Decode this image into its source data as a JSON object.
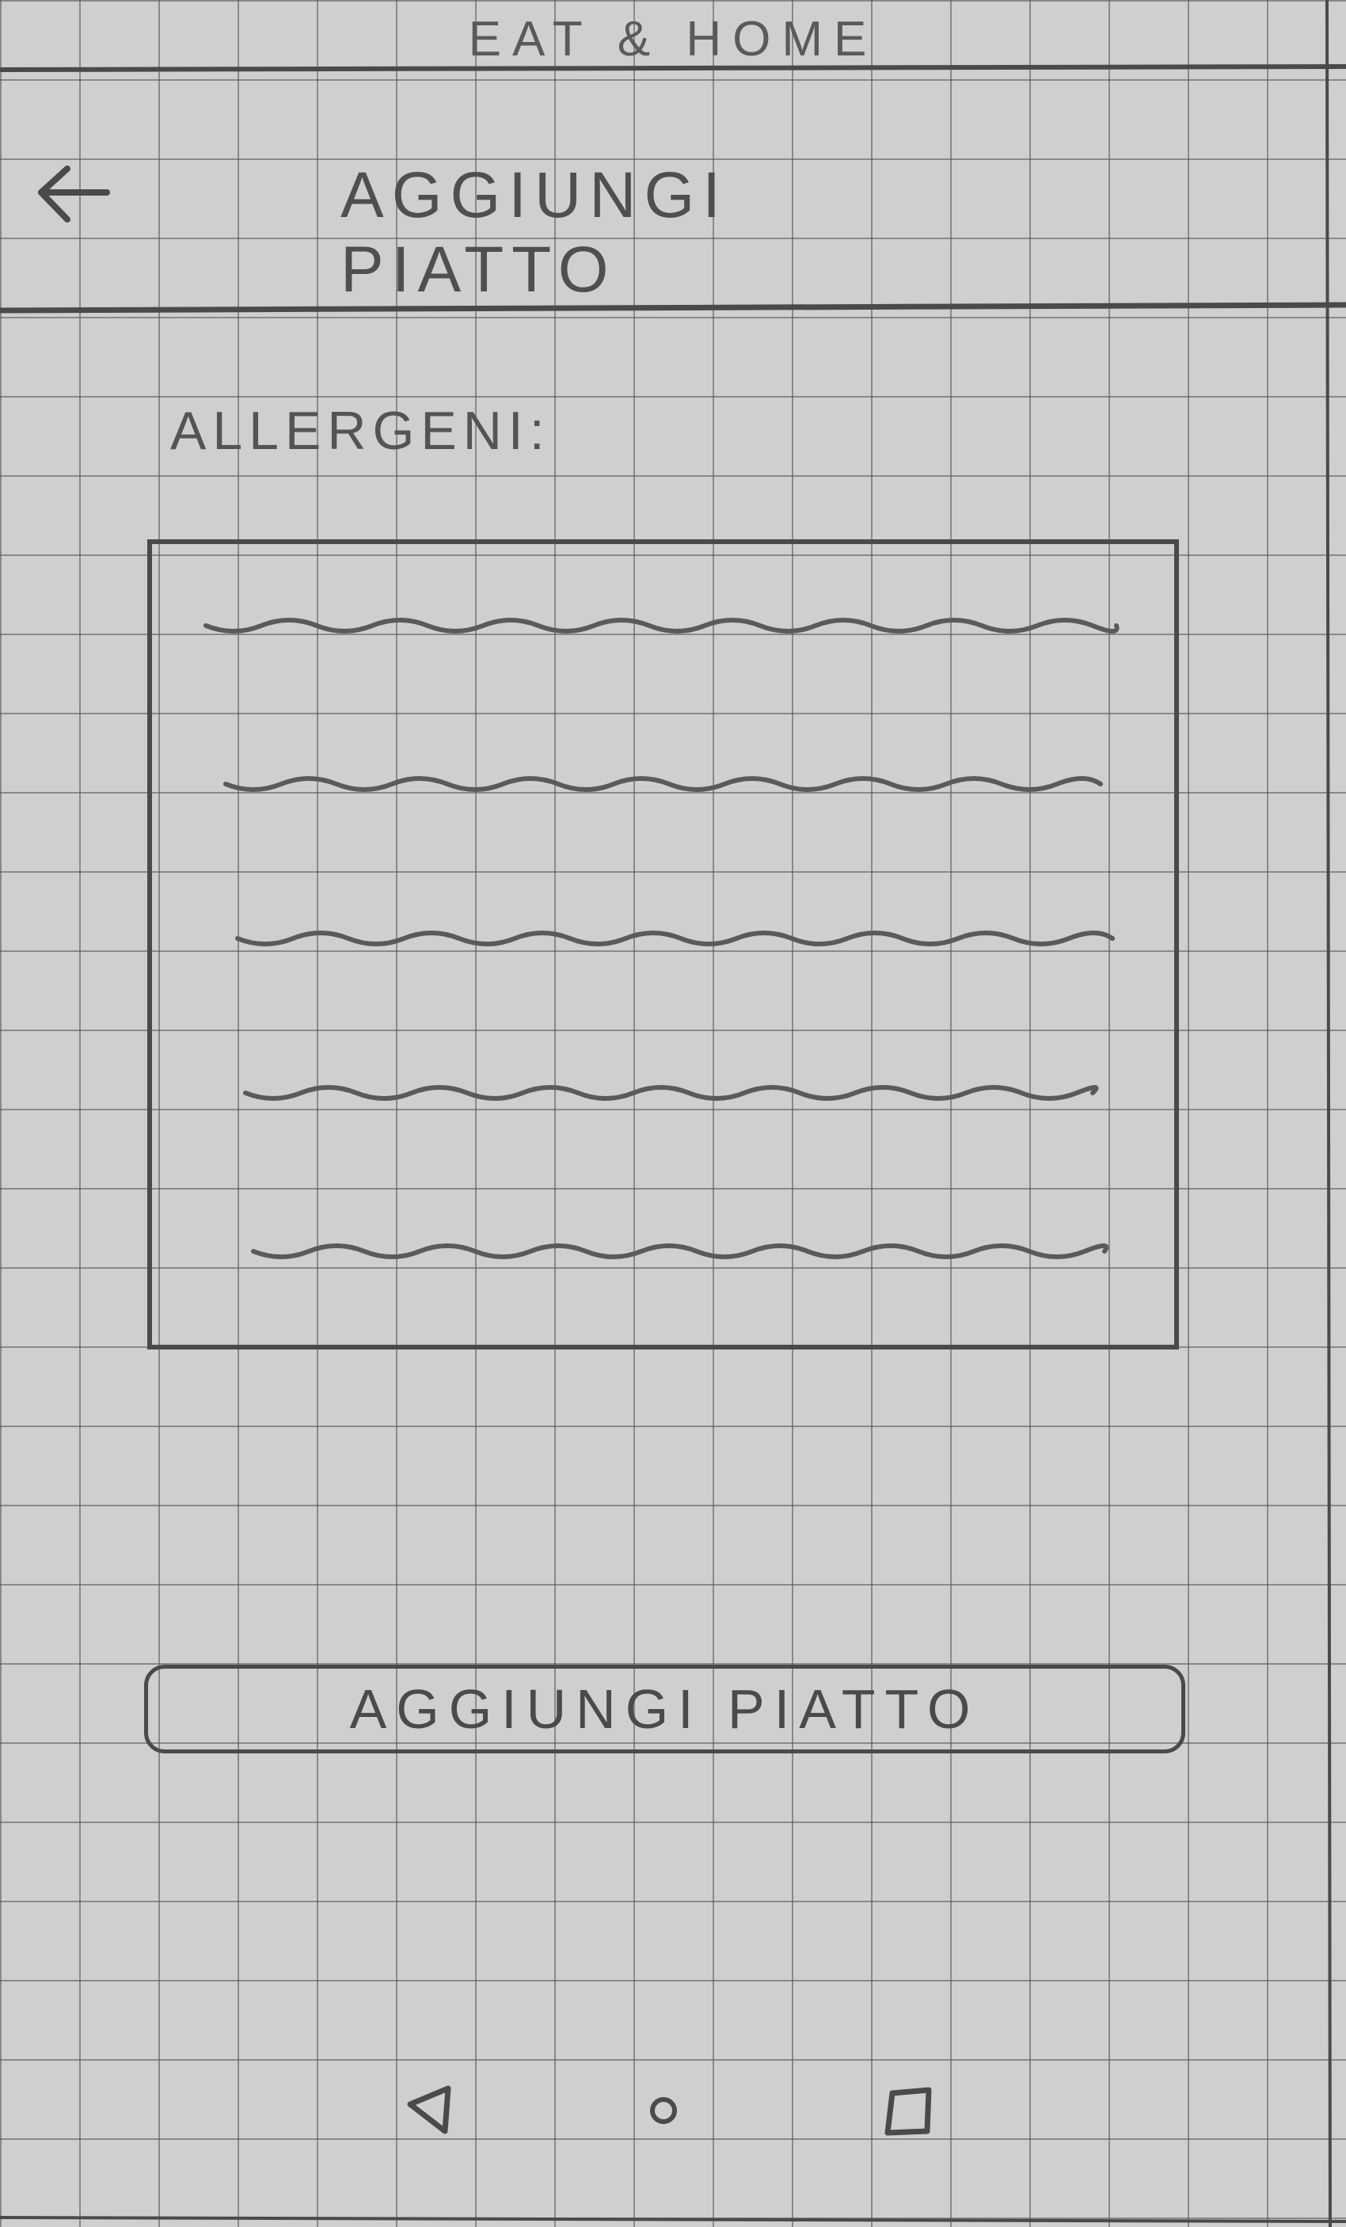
{
  "app": {
    "title": "EAT & HOME"
  },
  "header": {
    "back_icon": "arrow-left-icon",
    "title": "AGGIUNGI PIATTO"
  },
  "allergens": {
    "label": "ALLERGENI:",
    "items": [
      "",
      "",
      "",
      "",
      ""
    ]
  },
  "actions": {
    "add_button_label": "AGGIUNGI PIATTO"
  },
  "system_nav": {
    "back_icon": "triangle-back-icon",
    "home_icon": "circle-home-icon",
    "recents_icon": "square-recents-icon"
  },
  "colors": {
    "paper": "#cfcfcf",
    "grid": "#505050",
    "pencil": "#4a4a4a"
  }
}
